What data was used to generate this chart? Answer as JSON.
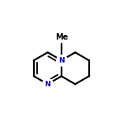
{
  "bg_color": "#ffffff",
  "line_color": "#000000",
  "N_color": "#0000cc",
  "Me_color": "#000000",
  "line_width": 1.6,
  "fig_width": 1.61,
  "fig_height": 1.73,
  "dpi": 100,
  "N1_label": "N",
  "N2_label": "N",
  "Me_label": "Me"
}
